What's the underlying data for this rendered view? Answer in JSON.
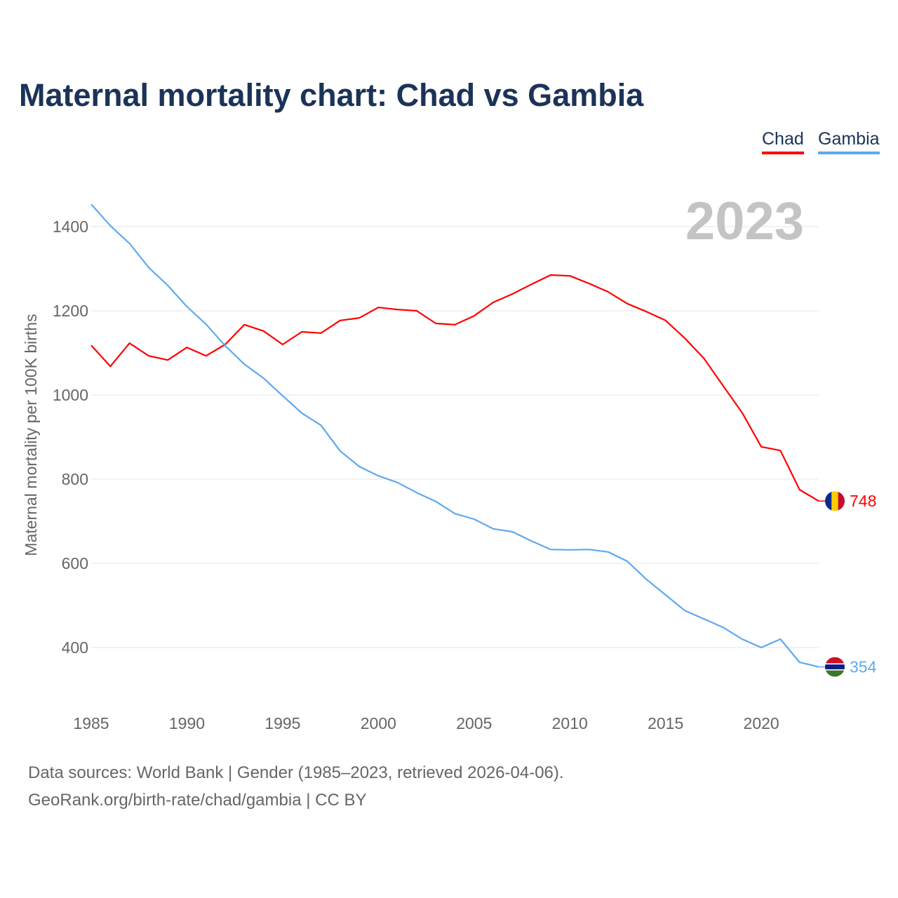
{
  "title": "Maternal mortality chart: Chad vs Gambia",
  "year_watermark": "2023",
  "footer": {
    "line1": "Data sources: World Bank | Gender (1985–2023, retrieved 2026-04-06).",
    "line2": "GeoRank.org/birth-rate/chad/gambia | CC BY"
  },
  "chart_data": {
    "type": "line",
    "title": "Maternal mortality chart: Chad vs Gambia",
    "xlabel": "",
    "ylabel": "Maternal mortality per 100K births",
    "xlim": [
      1985,
      2023
    ],
    "ylim": [
      285,
      1460
    ],
    "xticks": [
      "1985",
      "1990",
      "1995",
      "2000",
      "2005",
      "2010",
      "2015",
      "2020"
    ],
    "yticks": [
      "400",
      "600",
      "800",
      "1000",
      "1200",
      "1400"
    ],
    "grid": true,
    "legend_placement": "top-right",
    "x": [
      1985,
      1986,
      1987,
      1988,
      1989,
      1990,
      1991,
      1992,
      1993,
      1994,
      1995,
      1996,
      1997,
      1998,
      1999,
      2000,
      2001,
      2002,
      2003,
      2004,
      2005,
      2006,
      2007,
      2008,
      2009,
      2010,
      2011,
      2012,
      2013,
      2014,
      2015,
      2016,
      2017,
      2018,
      2019,
      2020,
      2021,
      2022,
      2023
    ],
    "series": [
      {
        "name": "Chad",
        "color": "#ff0000",
        "end_label": "748",
        "values": [
          1118,
          1068,
          1123,
          1093,
          1083,
          1113,
          1093,
          1120,
          1167,
          1152,
          1120,
          1150,
          1147,
          1177,
          1183,
          1208,
          1203,
          1200,
          1170,
          1167,
          1188,
          1220,
          1240,
          1263,
          1285,
          1283,
          1265,
          1245,
          1217,
          1198,
          1177,
          1135,
          1087,
          1022,
          958,
          877,
          868,
          775,
          748
        ]
      },
      {
        "name": "Gambia",
        "color": "#5ea9ee",
        "end_label": "354",
        "values": [
          1453,
          1402,
          1360,
          1303,
          1260,
          1210,
          1168,
          1117,
          1073,
          1040,
          998,
          957,
          928,
          867,
          830,
          808,
          792,
          768,
          747,
          718,
          705,
          682,
          675,
          653,
          633,
          632,
          633,
          627,
          605,
          562,
          525,
          488,
          468,
          448,
          420,
          400,
          420,
          365,
          354
        ]
      }
    ]
  }
}
